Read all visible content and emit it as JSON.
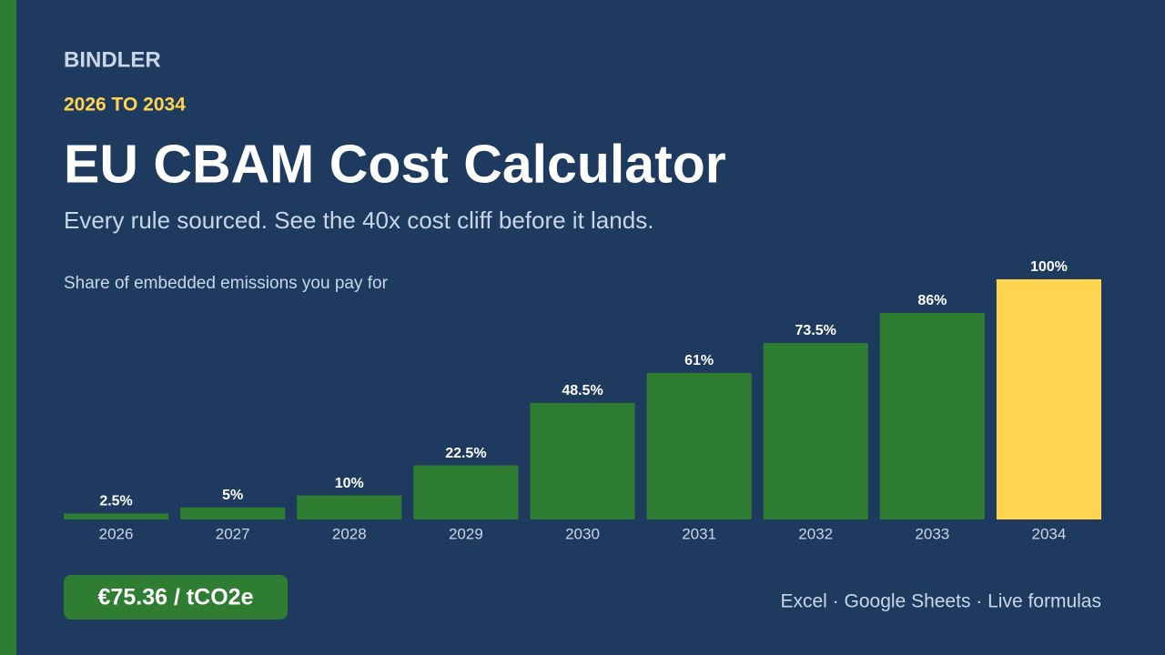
{
  "brand": "BINDLER",
  "eyebrow": "2026 TO 2034",
  "headline": "EU CBAM Cost Calculator",
  "tagline": "Every rule sourced. See the 40x cost cliff before it lands.",
  "chart_data": {
    "type": "bar",
    "title": "Share of embedded emissions you pay for",
    "categories": [
      "2026",
      "2027",
      "2028",
      "2029",
      "2030",
      "2031",
      "2032",
      "2033",
      "2034"
    ],
    "values": [
      2.5,
      5,
      10,
      22.5,
      48.5,
      61,
      73.5,
      86,
      100
    ],
    "value_labels": [
      "2.5%",
      "5%",
      "10%",
      "22.5%",
      "48.5%",
      "61%",
      "73.5%",
      "86%",
      "100%"
    ],
    "colors": [
      "#2e7d32",
      "#2e7d32",
      "#2e7d32",
      "#2e7d32",
      "#2e7d32",
      "#2e7d32",
      "#2e7d32",
      "#2e7d32",
      "#ffd54f"
    ]
  },
  "badge": "€75.36 / tCO2e",
  "footer": "Excel · Google Sheets · Live formulas"
}
